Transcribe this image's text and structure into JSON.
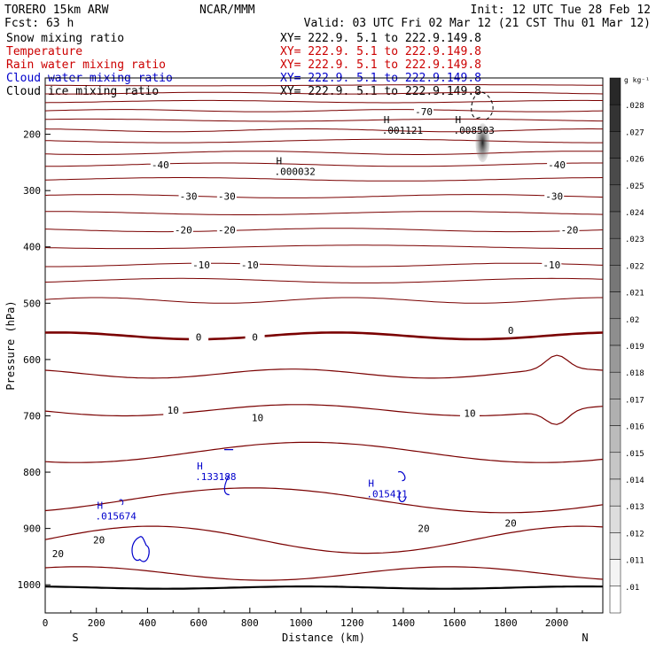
{
  "header": {
    "model": "TORERO  15km ARW",
    "center": "NCAR/MMM",
    "init": "Init: 12 UTC Tue 28 Feb 12",
    "fcst": "Fcst:   63 h",
    "valid": "Valid: 03 UTC Fri 02 Mar 12 (21 CST Thu 01 Mar 12)"
  },
  "fields": [
    {
      "name": "Snow mixing ratio",
      "color": "#000000",
      "xy": "XY= 222.9.  5.1 to 222.9.149.8"
    },
    {
      "name": "Temperature",
      "color": "#cc0000",
      "xy": "XY= 222.9.  5.1 to 222.9.149.8"
    },
    {
      "name": "Rain water mixing ratio",
      "color": "#cc0000",
      "xy": "XY= 222.9.  5.1 to 222.9.149.8"
    },
    {
      "name": "Cloud water mixing ratio",
      "color": "#0000cc",
      "xy": "XY= 222.9.  5.1 to 222.9.149.8"
    },
    {
      "name": "Cloud ice mixing ratio",
      "color": "#000000",
      "xy": "XY= 222.9.  5.1 to 222.9.149.8"
    }
  ],
  "chart_data": {
    "type": "contour-cross-section",
    "xlabel": "Distance (km)",
    "ylabel": "Pressure (hPa)",
    "xlim": [
      0,
      2180
    ],
    "ylim": [
      1050,
      100
    ],
    "x_ticks": [
      0,
      200,
      400,
      600,
      800,
      1000,
      1200,
      1400,
      1600,
      1800,
      2000
    ],
    "y_ticks": [
      200,
      300,
      400,
      500,
      600,
      700,
      800,
      900,
      1000
    ],
    "x_end_labels": {
      "left": "S",
      "right": "N"
    },
    "colorbar": {
      "unit": "g kg⁻¹",
      "labels": [
        ".028",
        ".027",
        ".026",
        ".025",
        ".024",
        ".023",
        ".022",
        ".021",
        ".02",
        ".019",
        ".018",
        ".017",
        ".016",
        ".015",
        ".014",
        ".013",
        ".012",
        ".011",
        ".01"
      ]
    },
    "temperature_contour_labels": [
      {
        "text": "-70",
        "x": 1480,
        "p": 160
      },
      {
        "text": "-40",
        "x": 450,
        "p": 254
      },
      {
        "text": "-40",
        "x": 2000,
        "p": 254
      },
      {
        "text": "-30",
        "x": 560,
        "p": 310
      },
      {
        "text": "-30",
        "x": 710,
        "p": 310
      },
      {
        "text": "-30",
        "x": 1990,
        "p": 310
      },
      {
        "text": "-20",
        "x": 540,
        "p": 370
      },
      {
        "text": "-20",
        "x": 710,
        "p": 370
      },
      {
        "text": "-20",
        "x": 2050,
        "p": 370
      },
      {
        "text": "-10",
        "x": 610,
        "p": 432
      },
      {
        "text": "-10",
        "x": 800,
        "p": 432
      },
      {
        "text": "-10",
        "x": 1980,
        "p": 432
      },
      {
        "text": "0",
        "x": 600,
        "p": 560
      },
      {
        "text": "0",
        "x": 820,
        "p": 560
      },
      {
        "text": "0",
        "x": 1820,
        "p": 548
      },
      {
        "text": "10",
        "x": 500,
        "p": 690
      },
      {
        "text": "10",
        "x": 830,
        "p": 703
      },
      {
        "text": "10",
        "x": 1660,
        "p": 695
      },
      {
        "text": "20",
        "x": 210,
        "p": 920
      },
      {
        "text": "20",
        "x": 50,
        "p": 945
      },
      {
        "text": "20",
        "x": 1480,
        "p": 900
      },
      {
        "text": "20",
        "x": 1820,
        "p": 890
      }
    ],
    "maxima": [
      {
        "label": "H",
        "value": ".001121",
        "x": 1420,
        "p": 190
      },
      {
        "label": "H",
        "value": ".008503",
        "x": 1700,
        "p": 190
      },
      {
        "label": "H",
        "value": ".000032",
        "x": 1000,
        "p": 263
      },
      {
        "label": "H",
        "value": ".133188",
        "x": 690,
        "p": 805
      },
      {
        "label": "H",
        "value": ".015411",
        "x": 1360,
        "p": 835
      },
      {
        "label": "H",
        "value": ".015674",
        "x": 300,
        "p": 875
      }
    ]
  }
}
